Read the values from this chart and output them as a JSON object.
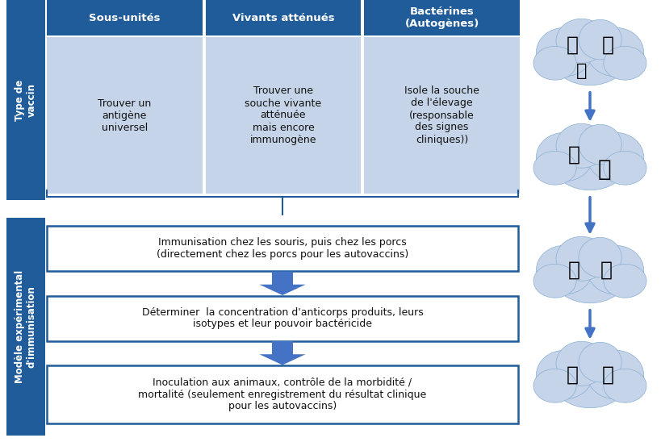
{
  "bg_color": "#ffffff",
  "blue_dark": "#1F5C99",
  "blue_light": "#C5D4E8",
  "blue_arrow": "#4472C4",
  "side_label_top": "Type de\nvaccin",
  "side_label_bottom": "Modèle expérimental\nd'immunisation",
  "col_headers": [
    "Sous-unités",
    "Vivants atténués",
    "Bactérines\n(Autogènes)"
  ],
  "col_bodies": [
    "Trouver un\nantigène\nuniversel",
    "Trouver une\nsouche vivante\natténuée\nmais encore\nimmunogène",
    "Isole la souche\nde l'élevage\n(responsable\ndes signes\ncliniques))"
  ],
  "flow_boxes": [
    "Immunisation chez les souris, puis chez les porcs\n(directement chez les porcs pour les autovaccins)",
    "Déterminer  la concentration d'anticorps produits, leurs\nisotypes et leur pouvoir bactéricide",
    "Inoculation aux animaux, contrôle de la morbidité /\nmortalité (seulement enregistrement du résultat clinique\npour les autovaccins)"
  ],
  "cloud_color": "#C5D4E8",
  "cloud_edge": "#8AAFD4"
}
